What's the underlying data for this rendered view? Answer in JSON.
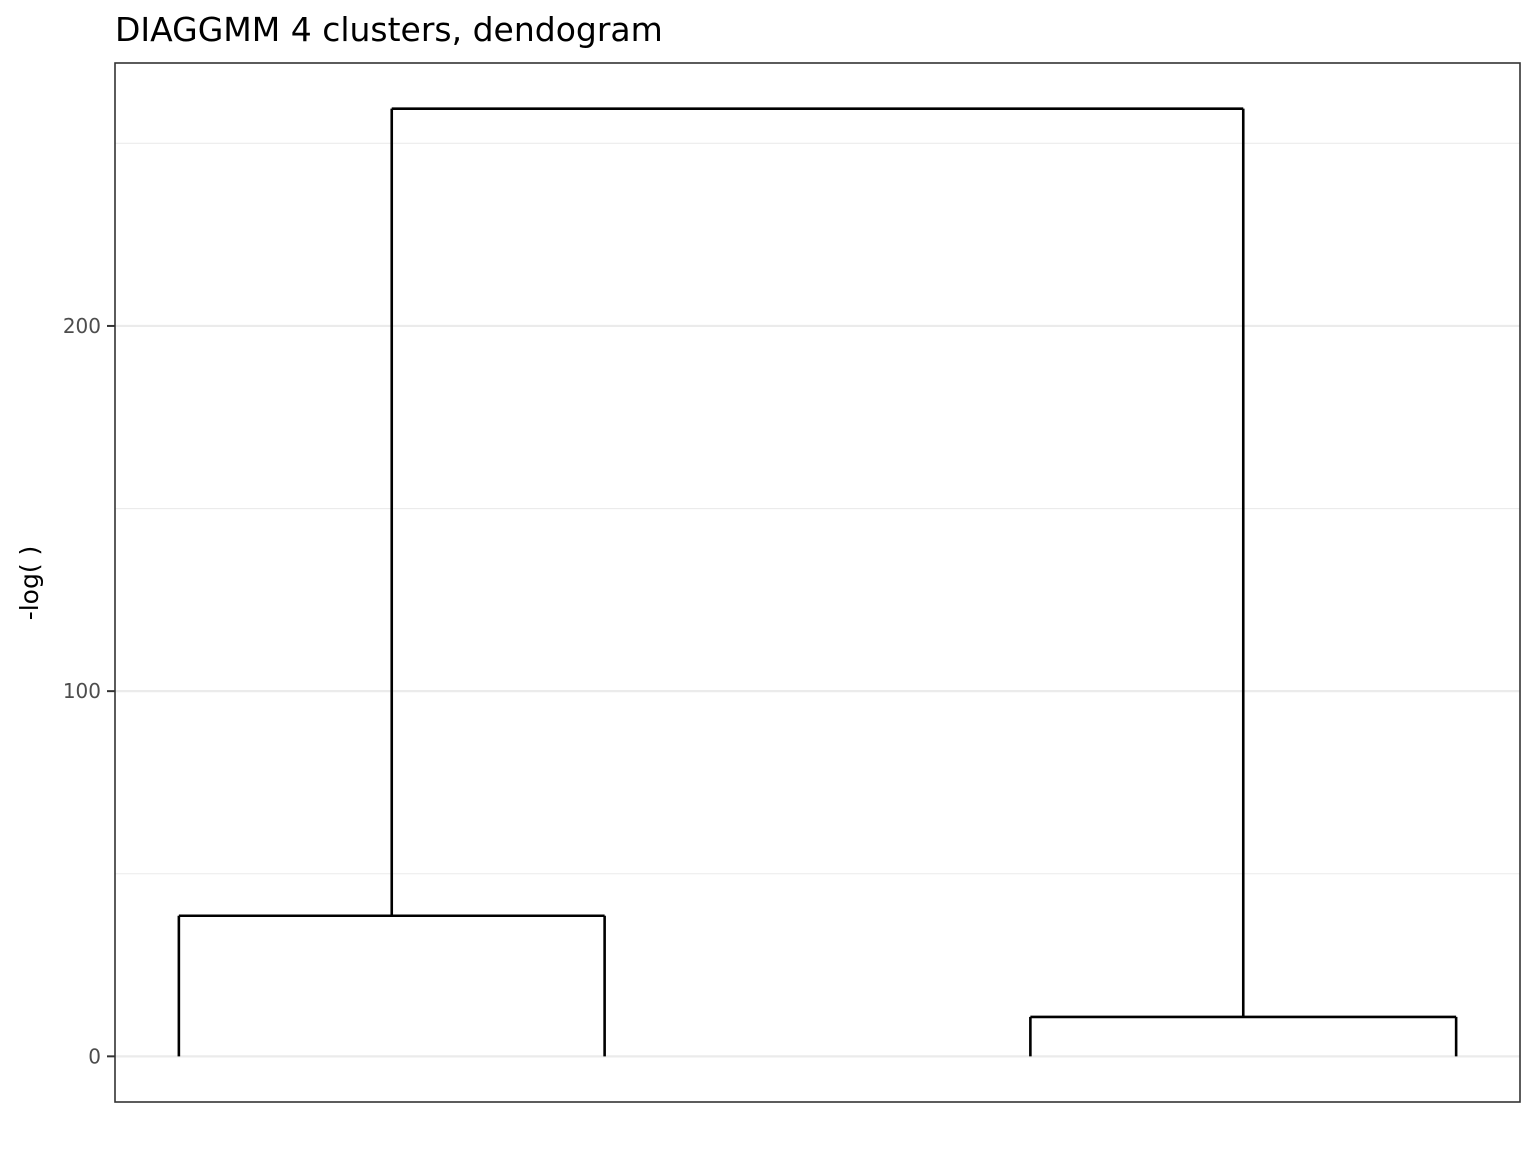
{
  "chart_data": {
    "type": "dendrogram",
    "title": "DIAGGMM 4 clusters, dendogram",
    "xlabel": "",
    "ylabel": "-log( )",
    "ylim": [
      -12.5,
      272
    ],
    "yticks": [
      0,
      100,
      200
    ],
    "yminor": [
      50,
      150,
      250
    ],
    "grid": "horizontal",
    "leaves": [
      1,
      2,
      3,
      4
    ],
    "xlim": [
      0.85,
      4.15
    ],
    "merges": [
      {
        "left": 1,
        "right": 2,
        "height": 38.5,
        "center": 1.5
      },
      {
        "left": 3,
        "right": 4,
        "height": 10.8,
        "center": 3.5
      },
      {
        "left": 1.5,
        "right": 3.5,
        "height": 259.5,
        "center": 2.5
      }
    ],
    "segments": [
      {
        "x": 1,
        "xend": 1,
        "y": 0,
        "yend": 38.5
      },
      {
        "x": 2,
        "xend": 2,
        "y": 0,
        "yend": 38.5
      },
      {
        "x": 1,
        "xend": 2,
        "y": 38.5,
        "yend": 38.5
      },
      {
        "x": 3,
        "xend": 3,
        "y": 0,
        "yend": 10.8
      },
      {
        "x": 4,
        "xend": 4,
        "y": 0,
        "yend": 10.8
      },
      {
        "x": 3,
        "xend": 4,
        "y": 10.8,
        "yend": 10.8
      },
      {
        "x": 1.5,
        "xend": 1.5,
        "y": 38.5,
        "yend": 259.5
      },
      {
        "x": 3.5,
        "xend": 3.5,
        "y": 10.8,
        "yend": 259.5
      },
      {
        "x": 1.5,
        "xend": 3.5,
        "y": 259.5,
        "yend": 259.5
      }
    ]
  }
}
